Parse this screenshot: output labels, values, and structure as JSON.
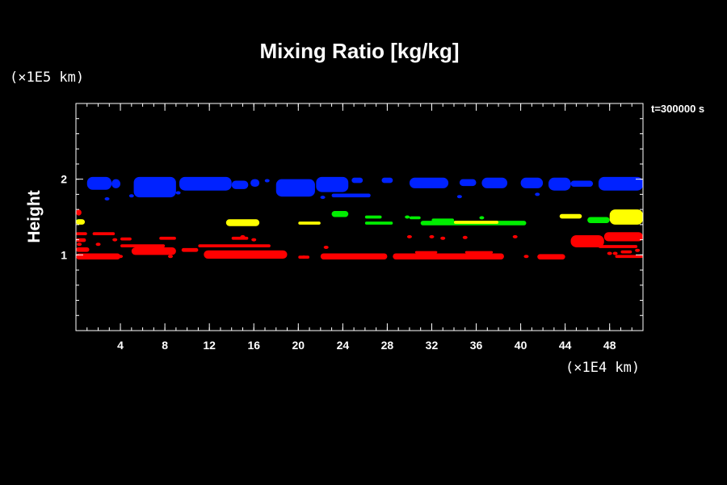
{
  "chart_data": {
    "type": "heatmap",
    "title": "Mixing Ratio [kg/kg]",
    "ylabel": "Height",
    "y_unit": "(×1E5 km)",
    "x_unit": "(×1E4 km)",
    "time_label": "t=300000 s",
    "xlim": [
      0,
      51
    ],
    "ylim": [
      0,
      3
    ],
    "x_ticks": [
      4,
      8,
      12,
      16,
      20,
      24,
      28,
      32,
      36,
      40,
      44,
      48
    ],
    "y_ticks": [
      1,
      2
    ],
    "x_minor_step": 1,
    "y_minor_step": 0.2,
    "levels": [
      {
        "name": "blue",
        "color": "#0022ff"
      },
      {
        "name": "green",
        "color": "#00ee00"
      },
      {
        "name": "yellow",
        "color": "#ffff00"
      },
      {
        "name": "red",
        "color": "#ff0000"
      }
    ],
    "regions": [
      {
        "level": "blue",
        "x0": 1.0,
        "x1": 3.2,
        "y0": 1.86,
        "y1": 2.03
      },
      {
        "level": "blue",
        "x0": 3.2,
        "x1": 4.0,
        "y0": 1.88,
        "y1": 2.0
      },
      {
        "level": "blue",
        "x0": 5.2,
        "x1": 9.0,
        "y0": 1.76,
        "y1": 2.03
      },
      {
        "level": "blue",
        "x0": 9.3,
        "x1": 14.0,
        "y0": 1.85,
        "y1": 2.03
      },
      {
        "level": "blue",
        "x0": 14.0,
        "x1": 15.5,
        "y0": 1.87,
        "y1": 1.98
      },
      {
        "level": "blue",
        "x0": 15.7,
        "x1": 16.5,
        "y0": 1.9,
        "y1": 2.0
      },
      {
        "level": "blue",
        "x0": 18.0,
        "x1": 21.5,
        "y0": 1.77,
        "y1": 2.0
      },
      {
        "level": "blue",
        "x0": 21.6,
        "x1": 24.5,
        "y0": 1.83,
        "y1": 2.03
      },
      {
        "level": "blue",
        "x0": 23.0,
        "x1": 26.5,
        "y0": 1.76,
        "y1": 1.81
      },
      {
        "level": "blue",
        "x0": 24.8,
        "x1": 25.8,
        "y0": 1.95,
        "y1": 2.02
      },
      {
        "level": "blue",
        "x0": 27.5,
        "x1": 28.5,
        "y0": 1.95,
        "y1": 2.02
      },
      {
        "level": "blue",
        "x0": 30.0,
        "x1": 33.5,
        "y0": 1.88,
        "y1": 2.02
      },
      {
        "level": "blue",
        "x0": 34.5,
        "x1": 36.0,
        "y0": 1.91,
        "y1": 2.0
      },
      {
        "level": "blue",
        "x0": 36.5,
        "x1": 38.8,
        "y0": 1.88,
        "y1": 2.02
      },
      {
        "level": "blue",
        "x0": 40.0,
        "x1": 42.0,
        "y0": 1.88,
        "y1": 2.02
      },
      {
        "level": "blue",
        "x0": 42.5,
        "x1": 44.5,
        "y0": 1.85,
        "y1": 2.02
      },
      {
        "level": "blue",
        "x0": 44.5,
        "x1": 46.5,
        "y0": 1.9,
        "y1": 1.98
      },
      {
        "level": "blue",
        "x0": 47.0,
        "x1": 51.0,
        "y0": 1.85,
        "y1": 2.03
      },
      {
        "level": "green",
        "x0": 0.0,
        "x1": 0.6,
        "y0": 1.42,
        "y1": 1.47
      },
      {
        "level": "green",
        "x0": 23.0,
        "x1": 24.5,
        "y0": 1.5,
        "y1": 1.58
      },
      {
        "level": "green",
        "x0": 26.0,
        "x1": 27.5,
        "y0": 1.48,
        "y1": 1.52
      },
      {
        "level": "green",
        "x0": 26.0,
        "x1": 28.5,
        "y0": 1.4,
        "y1": 1.44
      },
      {
        "level": "green",
        "x0": 30.0,
        "x1": 31.0,
        "y0": 1.47,
        "y1": 1.51
      },
      {
        "level": "green",
        "x0": 31.0,
        "x1": 40.5,
        "y0": 1.39,
        "y1": 1.45
      },
      {
        "level": "green",
        "x0": 32.0,
        "x1": 34.0,
        "y0": 1.44,
        "y1": 1.48
      },
      {
        "level": "green",
        "x0": 46.0,
        "x1": 48.0,
        "y0": 1.42,
        "y1": 1.5
      },
      {
        "level": "yellow",
        "x0": 0.0,
        "x1": 0.8,
        "y0": 1.4,
        "y1": 1.47
      },
      {
        "level": "yellow",
        "x0": 13.5,
        "x1": 16.5,
        "y0": 1.38,
        "y1": 1.47
      },
      {
        "level": "yellow",
        "x0": 20.0,
        "x1": 22.0,
        "y0": 1.4,
        "y1": 1.44
      },
      {
        "level": "yellow",
        "x0": 34.0,
        "x1": 38.0,
        "y0": 1.41,
        "y1": 1.45
      },
      {
        "level": "yellow",
        "x0": 43.5,
        "x1": 45.5,
        "y0": 1.48,
        "y1": 1.54
      },
      {
        "level": "yellow",
        "x0": 48.0,
        "x1": 51.0,
        "y0": 1.4,
        "y1": 1.6
      },
      {
        "level": "red",
        "x0": 0.0,
        "x1": 0.5,
        "y0": 1.52,
        "y1": 1.6
      },
      {
        "level": "red",
        "x0": 0.0,
        "x1": 4.0,
        "y0": 0.94,
        "y1": 1.02
      },
      {
        "level": "red",
        "x0": 0.0,
        "x1": 1.2,
        "y0": 1.04,
        "y1": 1.1
      },
      {
        "level": "red",
        "x0": 0.0,
        "x1": 0.9,
        "y0": 1.17,
        "y1": 1.22
      },
      {
        "level": "red",
        "x0": 0.0,
        "x1": 1.0,
        "y0": 1.26,
        "y1": 1.3
      },
      {
        "level": "red",
        "x0": 1.5,
        "x1": 3.5,
        "y0": 1.26,
        "y1": 1.3
      },
      {
        "level": "red",
        "x0": 4.0,
        "x1": 5.0,
        "y0": 1.19,
        "y1": 1.23
      },
      {
        "level": "red",
        "x0": 4.0,
        "x1": 8.0,
        "y0": 1.1,
        "y1": 1.14
      },
      {
        "level": "red",
        "x0": 5.0,
        "x1": 9.0,
        "y0": 1.0,
        "y1": 1.1
      },
      {
        "level": "red",
        "x0": 7.5,
        "x1": 9.0,
        "y0": 1.2,
        "y1": 1.24
      },
      {
        "level": "red",
        "x0": 9.5,
        "x1": 11.0,
        "y0": 1.04,
        "y1": 1.09
      },
      {
        "level": "red",
        "x0": 11.0,
        "x1": 17.5,
        "y0": 1.1,
        "y1": 1.14
      },
      {
        "level": "red",
        "x0": 11.5,
        "x1": 19.0,
        "y0": 0.95,
        "y1": 1.06
      },
      {
        "level": "red",
        "x0": 14.0,
        "x1": 15.5,
        "y0": 1.2,
        "y1": 1.24
      },
      {
        "level": "red",
        "x0": 20.0,
        "x1": 21.0,
        "y0": 0.95,
        "y1": 0.99
      },
      {
        "level": "red",
        "x0": 22.0,
        "x1": 28.0,
        "y0": 0.94,
        "y1": 1.02
      },
      {
        "level": "red",
        "x0": 28.5,
        "x1": 38.5,
        "y0": 0.94,
        "y1": 1.02
      },
      {
        "level": "red",
        "x0": 30.5,
        "x1": 32.5,
        "y0": 1.02,
        "y1": 1.05
      },
      {
        "level": "red",
        "x0": 35.0,
        "x1": 37.5,
        "y0": 1.02,
        "y1": 1.05
      },
      {
        "level": "red",
        "x0": 41.5,
        "x1": 44.0,
        "y0": 0.94,
        "y1": 1.01
      },
      {
        "level": "red",
        "x0": 44.5,
        "x1": 47.5,
        "y0": 1.1,
        "y1": 1.26
      },
      {
        "level": "red",
        "x0": 47.5,
        "x1": 51.0,
        "y0": 1.18,
        "y1": 1.3
      },
      {
        "level": "red",
        "x0": 47.0,
        "x1": 50.5,
        "y0": 1.09,
        "y1": 1.13
      },
      {
        "level": "red",
        "x0": 49.0,
        "x1": 50.0,
        "y0": 1.02,
        "y1": 1.06
      },
      {
        "level": "red",
        "x0": 48.5,
        "x1": 51.0,
        "y0": 0.96,
        "y1": 1.0
      }
    ],
    "specks": [
      {
        "level": "blue",
        "x": 2.8,
        "y": 1.74
      },
      {
        "level": "blue",
        "x": 5.0,
        "y": 1.78
      },
      {
        "level": "blue",
        "x": 9.2,
        "y": 1.82
      },
      {
        "level": "blue",
        "x": 17.2,
        "y": 1.98
      },
      {
        "level": "blue",
        "x": 22.2,
        "y": 1.76
      },
      {
        "level": "blue",
        "x": 34.5,
        "y": 1.77
      },
      {
        "level": "blue",
        "x": 41.5,
        "y": 1.8
      },
      {
        "level": "green",
        "x": 29.8,
        "y": 1.5
      },
      {
        "level": "green",
        "x": 36.5,
        "y": 1.49
      },
      {
        "level": "red",
        "x": 0.3,
        "y": 1.14
      },
      {
        "level": "red",
        "x": 2.0,
        "y": 1.14
      },
      {
        "level": "red",
        "x": 3.5,
        "y": 1.2
      },
      {
        "level": "red",
        "x": 4.0,
        "y": 0.98
      },
      {
        "level": "red",
        "x": 8.5,
        "y": 0.98
      },
      {
        "level": "red",
        "x": 15.0,
        "y": 1.24
      },
      {
        "level": "red",
        "x": 16.0,
        "y": 1.2
      },
      {
        "level": "red",
        "x": 20.5,
        "y": 0.97
      },
      {
        "level": "red",
        "x": 22.5,
        "y": 1.1
      },
      {
        "level": "red",
        "x": 30.0,
        "y": 1.24
      },
      {
        "level": "red",
        "x": 32.0,
        "y": 1.24
      },
      {
        "level": "red",
        "x": 33.0,
        "y": 1.22
      },
      {
        "level": "red",
        "x": 35.0,
        "y": 1.23
      },
      {
        "level": "red",
        "x": 40.5,
        "y": 0.98
      },
      {
        "level": "red",
        "x": 39.5,
        "y": 1.24
      },
      {
        "level": "red",
        "x": 48.0,
        "y": 1.02
      },
      {
        "level": "red",
        "x": 48.5,
        "y": 1.02
      },
      {
        "level": "red",
        "x": 50.5,
        "y": 1.06
      }
    ]
  }
}
